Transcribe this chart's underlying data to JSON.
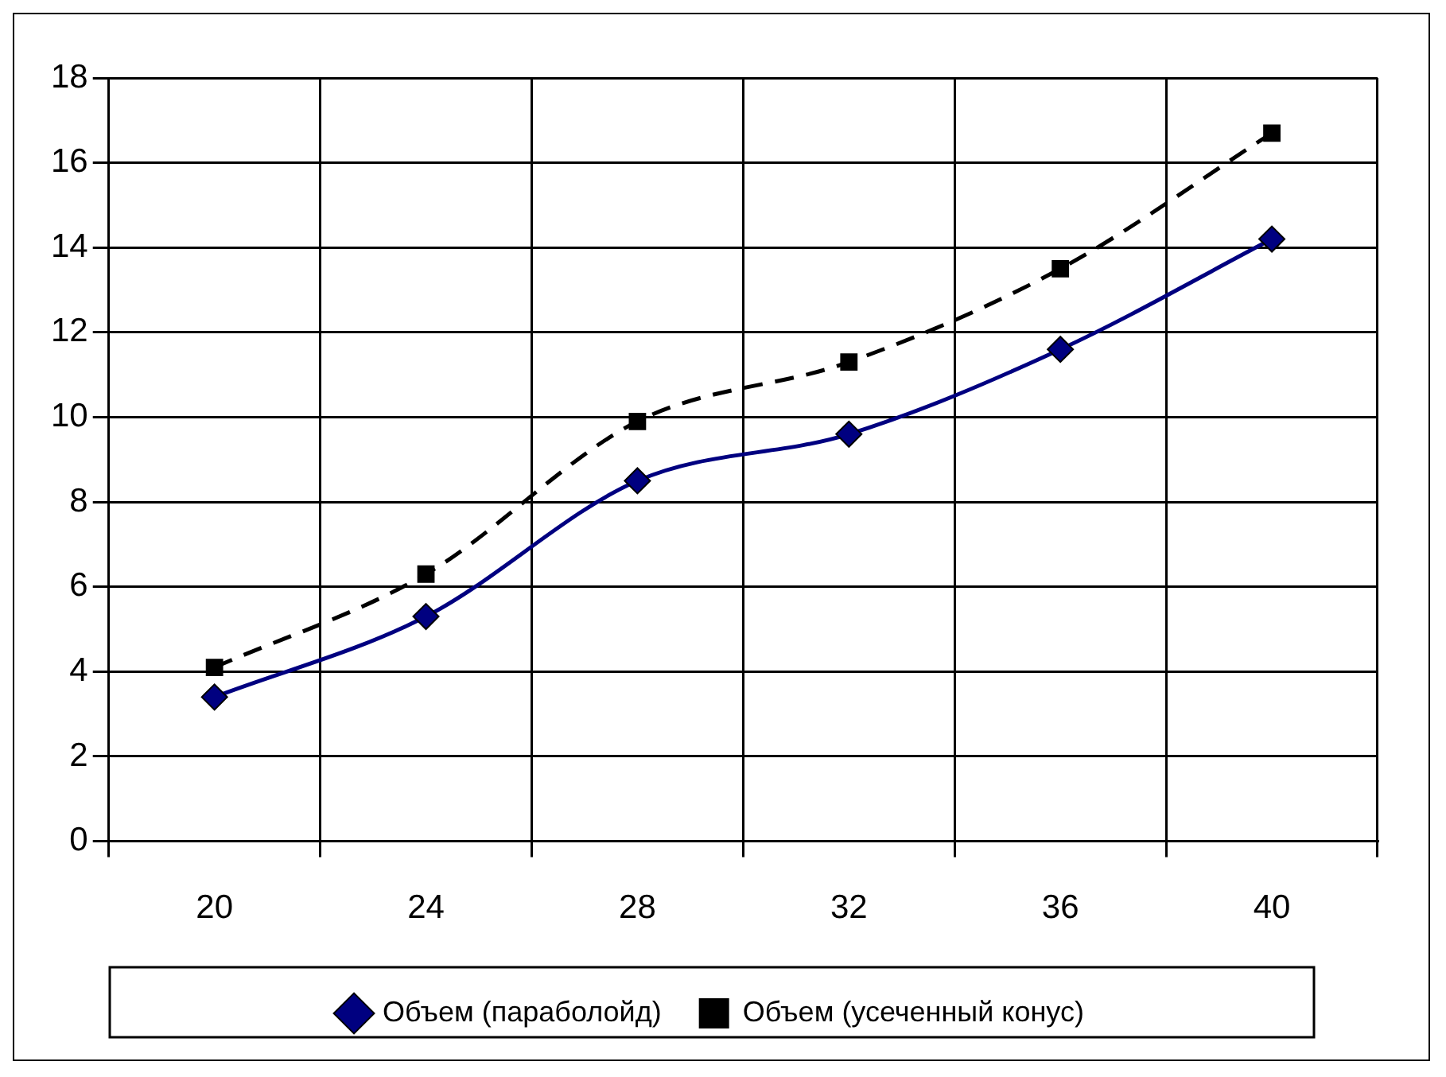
{
  "chart_data": {
    "type": "line",
    "categories": [
      "20",
      "24",
      "28",
      "32",
      "36",
      "40"
    ],
    "series": [
      {
        "name": "Объем (параболойд)",
        "color": "#000080",
        "values": [
          3.4,
          5.3,
          8.5,
          9.6,
          11.6,
          14.2
        ],
        "marker": "diamond",
        "line_style": "solid"
      },
      {
        "name": "Объем (усеченный конус)",
        "color": "#000000",
        "values": [
          4.1,
          6.3,
          9.9,
          11.3,
          13.5,
          16.7
        ],
        "marker": "square",
        "line_style": "dashed"
      }
    ],
    "ylim": [
      0,
      18
    ],
    "yticks": [
      0,
      2,
      4,
      6,
      8,
      10,
      12,
      14,
      16,
      18
    ],
    "grid": true,
    "legend": "bottom"
  }
}
